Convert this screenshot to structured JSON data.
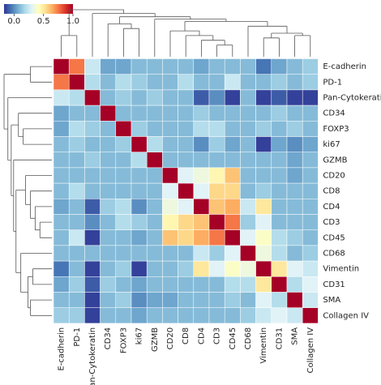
{
  "chart_data": {
    "type": "heatmap",
    "labels": [
      "E-cadherin",
      "PD-1",
      "Pan-Cytokeratin",
      "CD34",
      "FOXP3",
      "ki67",
      "GZMB",
      "CD20",
      "CD8",
      "CD4",
      "CD3",
      "CD45",
      "CD68",
      "Vimentin",
      "CD31",
      "SMA",
      "Collagen IV"
    ],
    "values": [
      [
        1,
        0.75,
        0.25,
        0.05,
        0.05,
        0.1,
        0.1,
        0.1,
        0.1,
        0.05,
        0.1,
        0.1,
        0.1,
        -0.05,
        0.05,
        0.1,
        0.15
      ],
      [
        0.75,
        1,
        0.2,
        0.1,
        0.2,
        0.15,
        0.1,
        0.1,
        0.2,
        0.1,
        0.1,
        0.25,
        0.1,
        0.1,
        0.15,
        0.1,
        0.15
      ],
      [
        0.25,
        0.2,
        1,
        0.1,
        0.15,
        0.1,
        0.15,
        0.1,
        0.1,
        -0.1,
        0.0,
        -0.15,
        0.1,
        -0.15,
        -0.1,
        -0.15,
        -0.15
      ],
      [
        0.05,
        0.1,
        0.1,
        1,
        0.1,
        0.1,
        0.1,
        0.1,
        0.1,
        0.15,
        0.1,
        0.1,
        0.1,
        0.1,
        0.15,
        0.1,
        0.1
      ],
      [
        0.05,
        0.2,
        0.15,
        0.1,
        1,
        0.15,
        0.1,
        0.1,
        0.1,
        0.2,
        0.2,
        0.1,
        0.1,
        0.15,
        0.1,
        0.15,
        0.1
      ],
      [
        0.1,
        0.15,
        0.1,
        0.1,
        0.15,
        1,
        0.2,
        0.1,
        0.1,
        0.0,
        0.15,
        0.05,
        0.1,
        -0.15,
        0.05,
        0.0,
        0.05
      ],
      [
        0.1,
        0.1,
        0.15,
        0.1,
        0.1,
        0.2,
        1,
        0.1,
        0.1,
        0.1,
        0.1,
        0.1,
        0.1,
        0.1,
        0.1,
        0.05,
        0.1
      ],
      [
        0.1,
        0.1,
        0.1,
        0.1,
        0.1,
        0.1,
        0.1,
        1,
        0.3,
        0.35,
        0.45,
        0.6,
        0.1,
        0.1,
        0.1,
        0.05,
        0.1
      ],
      [
        0.1,
        0.2,
        0.1,
        0.1,
        0.1,
        0.1,
        0.1,
        0.3,
        1,
        0.3,
        0.55,
        0.55,
        0.1,
        0.15,
        0.1,
        0.1,
        0.1
      ],
      [
        0.05,
        0.1,
        -0.1,
        0.15,
        0.2,
        0.0,
        0.1,
        0.35,
        0.3,
        1,
        0.6,
        0.65,
        0.25,
        0.5,
        0.1,
        0.1,
        0.1
      ],
      [
        0.1,
        0.1,
        0.0,
        0.1,
        0.2,
        0.15,
        0.1,
        0.45,
        0.55,
        0.6,
        1,
        0.75,
        0.15,
        0.3,
        0.1,
        0.1,
        0.1
      ],
      [
        0.1,
        0.25,
        -0.15,
        0.1,
        0.1,
        0.05,
        0.1,
        0.6,
        0.55,
        0.65,
        0.75,
        1,
        0.3,
        0.4,
        0.2,
        0.15,
        0.1
      ],
      [
        0.1,
        0.1,
        0.1,
        0.1,
        0.1,
        0.1,
        0.1,
        0.1,
        0.1,
        0.25,
        0.15,
        0.3,
        1,
        0.35,
        0.2,
        0.1,
        0.15
      ],
      [
        -0.05,
        0.1,
        -0.15,
        0.1,
        0.15,
        -0.15,
        0.1,
        0.1,
        0.15,
        0.5,
        0.3,
        0.4,
        0.35,
        1,
        0.5,
        0.3,
        0.25
      ],
      [
        0.05,
        0.15,
        -0.1,
        0.15,
        0.1,
        0.05,
        0.1,
        0.1,
        0.1,
        0.1,
        0.1,
        0.2,
        0.2,
        0.5,
        1,
        0.2,
        0.3
      ],
      [
        0.1,
        0.1,
        -0.15,
        0.1,
        0.15,
        0.0,
        0.05,
        0.05,
        0.1,
        0.1,
        0.1,
        0.15,
        0.1,
        0.3,
        0.2,
        1,
        0.25
      ],
      [
        0.15,
        0.15,
        -0.15,
        0.1,
        0.1,
        0.05,
        0.1,
        0.1,
        0.1,
        0.1,
        0.1,
        0.1,
        0.15,
        0.25,
        0.3,
        0.25,
        1
      ]
    ],
    "zlim": [
      -0.17,
      1
    ],
    "colorbar_ticks": [
      {
        "value": 0,
        "label": "0.0"
      },
      0.5,
      {
        "value": 1,
        "label": "1.0"
      }
    ],
    "colormap": [
      "#313695",
      "#4575b4",
      "#74add1",
      "#abd9e9",
      "#e0f3f8",
      "#ffffbf",
      "#fee090",
      "#fdae61",
      "#f46d43",
      "#d73027",
      "#a50026"
    ]
  }
}
